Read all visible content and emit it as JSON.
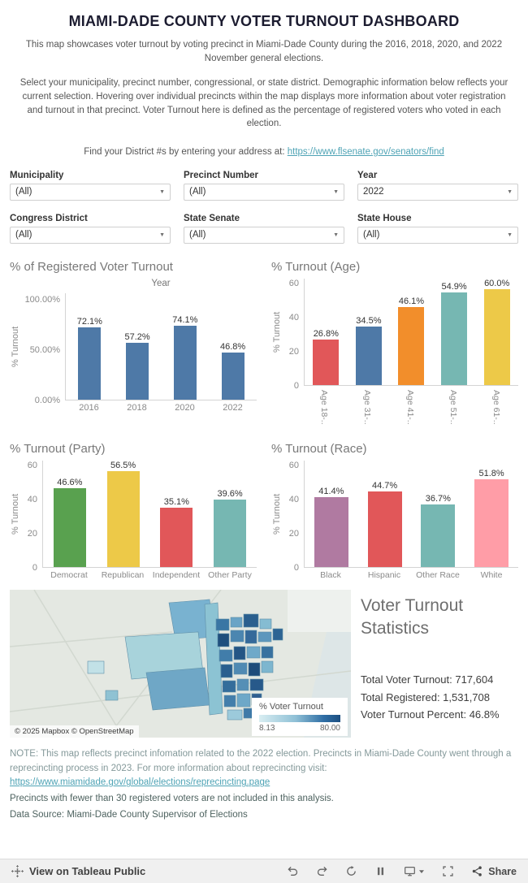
{
  "page": {
    "title": "MIAMI-DADE COUNTY VOTER TURNOUT DASHBOARD",
    "subtitle": "This map showcases voter turnout by voting precinct in Miami-Dade County during the 2016, 2018, 2020, and 2022 November general elections.",
    "description": "Select your municipality, precinct number, congressional, or state district. Demographic information below reflects your current selection. Hovering over individual precincts within the map displays more information about voter registration and turnout in that precinct. Voter Turnout here is defined as the percentage of registered voters who voted in each election.",
    "district_help_text": "Find your District #s by entering your address at: ",
    "district_help_link": "https://www.flsenate.gov/senators/find"
  },
  "filters": {
    "municipality": {
      "label": "Municipality",
      "value": "(All)"
    },
    "precinct": {
      "label": "Precinct Number",
      "value": "(All)"
    },
    "year": {
      "label": "Year",
      "value": "2022"
    },
    "congress": {
      "label": "Congress District",
      "value": "(All)"
    },
    "senate": {
      "label": "State Senate",
      "value": "(All)"
    },
    "house": {
      "label": "State House",
      "value": "(All)"
    }
  },
  "chart_data": [
    {
      "id": "turnout-by-year",
      "type": "bar",
      "title": "% of Registered Voter Turnout",
      "xlabel": "Year",
      "ylabel": "% Turnout",
      "categories": [
        "2016",
        "2018",
        "2020",
        "2022"
      ],
      "values": [
        72.1,
        57.2,
        74.1,
        46.8
      ],
      "value_labels": [
        "72.1%",
        "57.2%",
        "74.1%",
        "46.8%"
      ],
      "bar_colors": [
        "#4e79a7",
        "#4e79a7",
        "#4e79a7",
        "#4e79a7"
      ],
      "ytick_values": [
        0,
        50,
        100
      ],
      "ytick_labels": [
        "0.00%",
        "50.00%",
        "100.00%"
      ],
      "ylim": [
        0,
        107
      ],
      "grid": false,
      "legend": "none"
    },
    {
      "id": "turnout-by-age",
      "type": "bar",
      "title": "% Turnout (Age)",
      "xlabel": "",
      "ylabel": "% Turnout",
      "categories": [
        "Age 18-..",
        "Age 31-..",
        "Age 41-..",
        "Age 51-..",
        "Age 61-.."
      ],
      "values": [
        26.8,
        34.5,
        46.1,
        54.9,
        60.0
      ],
      "value_labels": [
        "26.8%",
        "34.5%",
        "46.1%",
        "54.9%",
        "60.0%"
      ],
      "bar_colors": [
        "#e15759",
        "#4e79a7",
        "#f28e2b",
        "#76b7b2",
        "#edc948"
      ],
      "ytick_values": [
        0,
        20,
        40,
        60
      ],
      "ytick_labels": [
        "0",
        "20",
        "40",
        "60"
      ],
      "ylim": [
        0,
        63
      ],
      "grid": false,
      "legend": "none"
    },
    {
      "id": "turnout-by-party",
      "type": "bar",
      "title": "% Turnout (Party)",
      "xlabel": "",
      "ylabel": "% Turnout",
      "categories": [
        "Democrat",
        "Republican",
        "Independent",
        "Other Party"
      ],
      "values": [
        46.6,
        56.5,
        35.1,
        39.6
      ],
      "value_labels": [
        "46.6%",
        "56.5%",
        "35.1%",
        "39.6%"
      ],
      "bar_colors": [
        "#59a14f",
        "#edc948",
        "#e15759",
        "#76b7b2"
      ],
      "ytick_values": [
        0,
        20,
        40,
        60
      ],
      "ytick_labels": [
        "0",
        "20",
        "40",
        "60"
      ],
      "ylim": [
        0,
        63
      ],
      "grid": false,
      "legend": "none"
    },
    {
      "id": "turnout-by-race",
      "type": "bar",
      "title": "% Turnout (Race)",
      "xlabel": "",
      "ylabel": "% Turnout",
      "categories": [
        "Black",
        "Hispanic",
        "Other Race",
        "White"
      ],
      "values": [
        41.4,
        44.7,
        36.7,
        51.8
      ],
      "value_labels": [
        "41.4%",
        "44.7%",
        "36.7%",
        "51.8%"
      ],
      "bar_colors": [
        "#b07aa1",
        "#e15759",
        "#76b7b2",
        "#ff9da7"
      ],
      "ytick_values": [
        0,
        20,
        40,
        60
      ],
      "ytick_labels": [
        "0",
        "20",
        "40",
        "60"
      ],
      "ylim": [
        0,
        63
      ],
      "grid": false,
      "legend": "none"
    }
  ],
  "map": {
    "attribution": "© 2025 Mapbox  © OpenStreetMap",
    "legend_title": "% Voter Turnout",
    "legend_min": "8.13",
    "legend_max": "80.00",
    "color_low": "#d9eef2",
    "color_high": "#1c4e80"
  },
  "stats": {
    "title": "Voter Turnout Statistics",
    "lines": [
      "Total Voter Turnout: 717,604",
      "Total Registered: 1,531,708",
      "Voter Turnout Percent: 46.8%"
    ]
  },
  "notes": {
    "note_text": "NOTE:  This map reflects precinct infomation related to the 2022 election. Precincts in Miami-Dade County went through a reprecincting process in 2023. For more information about reprecincting visit:",
    "note_link": "https://www.miamidade.gov/global/elections/reprecincting.page",
    "precincts_note": "Precincts with fewer than 30 registered voters are not included in this analysis.",
    "data_source": "Data Source: Miami-Dade County Supervisor of Elections"
  },
  "toolbar": {
    "brand": "View on Tableau Public",
    "share": "Share"
  }
}
